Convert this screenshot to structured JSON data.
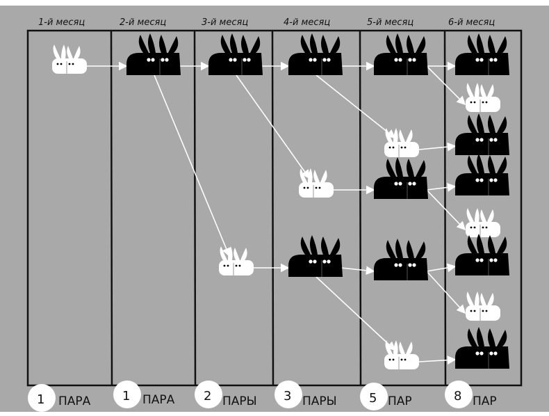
{
  "months": [
    {
      "label": "1-й месяц",
      "count": "1",
      "unit": "ПАРА",
      "pairs": [
        "young"
      ]
    },
    {
      "label": "2-й месяц",
      "count": "1",
      "unit": "ПАРА",
      "pairs": [
        "adult"
      ]
    },
    {
      "label": "3-й месяц",
      "count": "2",
      "unit": "ПАРЫ",
      "pairs": [
        "adult",
        "young"
      ]
    },
    {
      "label": "4-й месяц",
      "count": "3",
      "unit": "ПАРЫ",
      "pairs": [
        "adult",
        "young",
        "adult"
      ]
    },
    {
      "label": "5-й месяц",
      "count": "5",
      "unit": "ПАР",
      "pairs": [
        "adult",
        "young",
        "adult",
        "adult",
        "young"
      ]
    },
    {
      "label": "6-й месяц",
      "count": "8",
      "unit": "ПАР",
      "pairs": [
        "adult",
        "young",
        "adult",
        "adult",
        "young",
        "adult",
        "young",
        "adult"
      ]
    }
  ],
  "colors": {
    "background": "#a9a9a9",
    "adult_rabbit": "#000000",
    "young_rabbit": "#ffffff",
    "lines": "#111111",
    "arrows": "#ffffff"
  }
}
